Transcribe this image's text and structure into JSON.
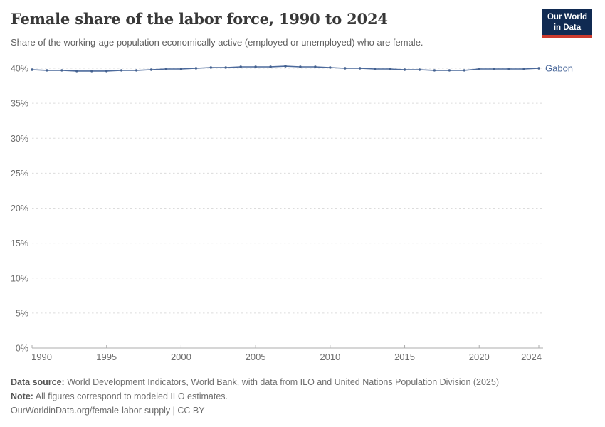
{
  "header": {
    "title": "Female share of the labor force, 1990 to 2024",
    "subtitle": "Share of the working-age population economically active (employed or unemployed) who are female.",
    "logo_line1": "Our World",
    "logo_line2": "in Data"
  },
  "colors": {
    "accent_line": "#4C6A9C",
    "marker": "#44618f",
    "grid": "#dcdcdc",
    "axis": "#adadad",
    "tick_label": "#6e6e6e",
    "logo_bg": "#102a52",
    "logo_red": "#cc3a2d"
  },
  "chart_data": {
    "type": "line",
    "title": "Female share of the labor force, 1990 to 2024",
    "xlabel": "",
    "ylabel": "",
    "x": [
      1990,
      1991,
      1992,
      1993,
      1994,
      1995,
      1996,
      1997,
      1998,
      1999,
      2000,
      2001,
      2002,
      2003,
      2004,
      2005,
      2006,
      2007,
      2008,
      2009,
      2010,
      2011,
      2012,
      2013,
      2014,
      2015,
      2016,
      2017,
      2018,
      2019,
      2020,
      2021,
      2022,
      2023,
      2024
    ],
    "series": [
      {
        "name": "Gabon",
        "color": "#4C6A9C",
        "values": [
          39.8,
          39.7,
          39.7,
          39.6,
          39.6,
          39.6,
          39.7,
          39.7,
          39.8,
          39.9,
          39.9,
          40.0,
          40.1,
          40.1,
          40.2,
          40.2,
          40.2,
          40.3,
          40.2,
          40.2,
          40.1,
          40.0,
          40.0,
          39.9,
          39.9,
          39.8,
          39.8,
          39.7,
          39.7,
          39.7,
          39.9,
          39.9,
          39.9,
          39.9,
          40.0
        ]
      }
    ],
    "xlim": [
      1990,
      2024
    ],
    "ylim": [
      0,
      40
    ],
    "xticks": [
      1990,
      1995,
      2000,
      2005,
      2010,
      2015,
      2020,
      2024
    ],
    "yticks": [
      0,
      5,
      10,
      15,
      20,
      25,
      30,
      35,
      40
    ],
    "ytick_suffix": "%",
    "grid": "horizontal-dashed",
    "legend": "line-end-label"
  },
  "footer": {
    "source_label": "Data source:",
    "source_text": "World Development Indicators, World Bank, with data from ILO and United Nations Population Division (2025)",
    "note_label": "Note:",
    "note_text": "All figures correspond to modeled ILO estimates.",
    "url": "OurWorldinData.org/female-labor-supply",
    "separator": " | ",
    "license": "CC BY"
  }
}
